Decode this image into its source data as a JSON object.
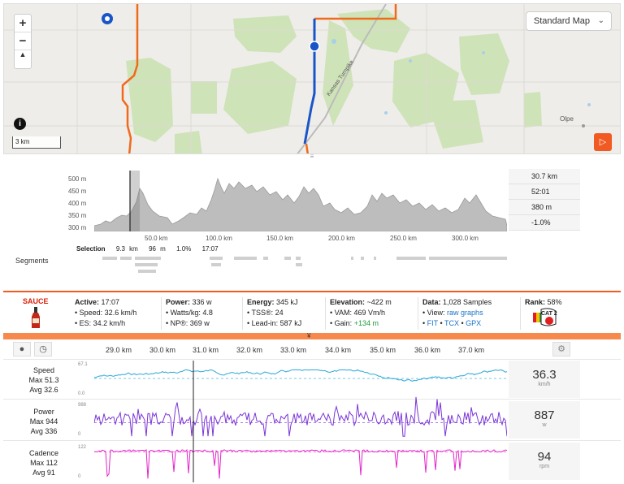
{
  "map": {
    "zoom_in": "+",
    "zoom_out": "−",
    "compass": "▲",
    "style_label": "Standard Map",
    "info": "i",
    "scale": "3 km",
    "place_label": "Olpe",
    "road_label": "Kansas Turnpike"
  },
  "elevation": {
    "y_ticks": [
      "500 m",
      "450 m",
      "400 m",
      "350 m",
      "300 m"
    ],
    "x_ticks": [
      "50.0 km",
      "100.0 km",
      "150.0 km",
      "200.0 km",
      "250.0 km",
      "300.0 km"
    ],
    "stats": [
      "30.7 km",
      "52:01",
      "380 m",
      "-1.0%"
    ],
    "selection_label": "Selection",
    "selection_values": [
      "9.3 km",
      "96 m",
      "1.0%",
      "17:07"
    ],
    "segments_label": "Segments"
  },
  "summary": {
    "logo": "SAUCE",
    "active": {
      "title": "Active:",
      "value": "17:07",
      "speed": "• Speed: 32.6 km/h",
      "es": "• ES: 34.2 km/h"
    },
    "power": {
      "title": "Power:",
      "value": "336 w",
      "wkg": "• Watts/kg: 4.8",
      "np": "• NP®: 369 w"
    },
    "energy": {
      "title": "Energy:",
      "value": "345 kJ",
      "tss": "• TSS®: 24",
      "leadin": "• Lead-in: 587 kJ"
    },
    "elevation": {
      "title": "Elevation:",
      "value": "~422 m",
      "vam": "• VAM: 469 Vm/h",
      "gain_label": "• Gain:",
      "gain": "+134 m"
    },
    "data": {
      "title": "Data:",
      "value": "1,028 Samples",
      "view_label": "• View:",
      "raw": "raw",
      "graphs": "graphs",
      "fit": "FIT",
      "tcx": "TCX",
      "gpx": "GPX"
    },
    "rank": {
      "title": "Rank:",
      "value": "58%",
      "badge": "CAT 2"
    },
    "collapse": "¥"
  },
  "streams": {
    "x_ticks": [
      "29.0 km",
      "30.0 km",
      "31.0 km",
      "32.0 km",
      "33.0 km",
      "34.0 km",
      "35.0 km",
      "36.0 km",
      "37.0 km"
    ],
    "rows": [
      {
        "name": "Speed",
        "max": "Max 51.3",
        "avg": "Avg 32.6",
        "ymax": "67.1",
        "ymin": "0.0",
        "current": "36.3",
        "unit": "km/h",
        "color": "#2aa7d8"
      },
      {
        "name": "Power",
        "max": "Max 944",
        "avg": "Avg 336",
        "ymax": "988",
        "ymin": "0",
        "current": "887",
        "unit": "w",
        "color": "#7b35d6"
      },
      {
        "name": "Cadence",
        "max": "Max 112",
        "avg": "Avg 91",
        "ymax": "122",
        "ymin": "0",
        "current": "94",
        "unit": "rpm",
        "color": "#e424c9"
      }
    ]
  },
  "colors": {
    "accent": "#f15a22",
    "route_blue": "#1a55c8",
    "route_orange": "#f06a1c",
    "link": "#1a73c9"
  }
}
